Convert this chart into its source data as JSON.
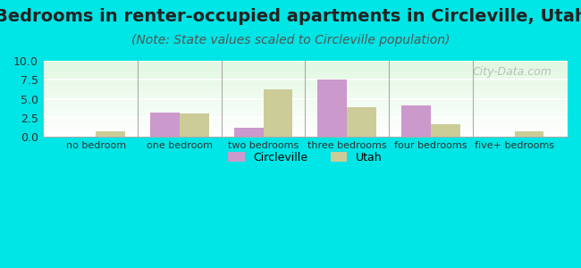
{
  "title": "Bedrooms in renter-occupied apartments in Circleville, Utah",
  "subtitle": "(Note: State values scaled to Circleville population)",
  "categories": [
    "no bedroom",
    "one bedroom",
    "two bedrooms",
    "three bedrooms",
    "four bedrooms",
    "five+ bedrooms"
  ],
  "circleville_values": [
    0.0,
    3.2,
    1.2,
    7.5,
    4.2,
    0.0
  ],
  "utah_values": [
    0.8,
    3.1,
    6.2,
    3.9,
    1.7,
    0.8
  ],
  "circleville_color": "#cc99cc",
  "utah_color": "#cccc99",
  "background_color": "#00e5e5",
  "ylim": [
    0,
    10
  ],
  "yticks": [
    0,
    2.5,
    5,
    7.5,
    10
  ],
  "bar_width": 0.35,
  "title_fontsize": 14,
  "subtitle_fontsize": 10,
  "watermark": "City-Data.com",
  "legend_labels": [
    "Circleville",
    "Utah"
  ]
}
